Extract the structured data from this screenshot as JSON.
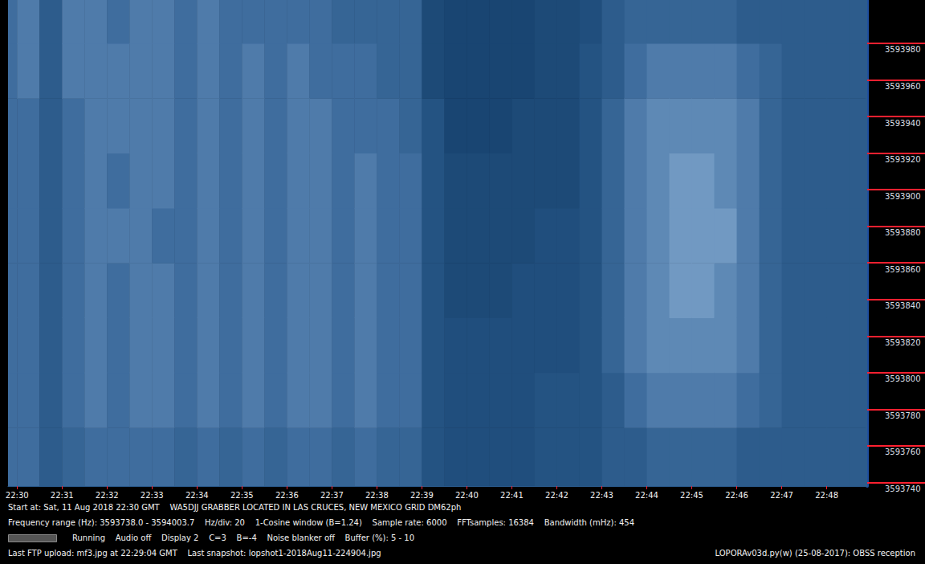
{
  "chart_data": {
    "type": "heatmap",
    "annotations": [
      "Start at: Sat, 11 Aug 2018 22:30 GMT    WA5DJJ GRABBER LOCATED IN LAS CRUCES, NEW MEXICO GRID DM62ph",
      "Frequency range (Hz): 3593738.0 - 3594003.7    Hz/div: 20    1-Cosine window (B=1.24)    Sample rate: 6000    FFTsamples: 16384    Bandwidth (mHz): 454",
      "Running    Audio off    Display 2    C=3    B=-4    Noise blanker off    Buffer (%): 5 - 10",
      "Last FTP upload: mf3.jpg at 22:29:04 GMT    Last snapshot: lopshot1-2018Aug11-224904.jpg",
      "LOPORAv03d.py(w) (25-08-2017): OBSS reception"
    ],
    "xlim": [
      1349.8,
      1368.9
    ],
    "xticks": [
      {
        "value": 1350,
        "label": "22:30"
      },
      {
        "value": 1351,
        "label": "22:31"
      },
      {
        "value": 1352,
        "label": "22:32"
      },
      {
        "value": 1353,
        "label": "22:33"
      },
      {
        "value": 1354,
        "label": "22:34"
      },
      {
        "value": 1355,
        "label": "22:35"
      },
      {
        "value": 1356,
        "label": "22:36"
      },
      {
        "value": 1357,
        "label": "22:37"
      },
      {
        "value": 1358,
        "label": "22:38"
      },
      {
        "value": 1359,
        "label": "22:39"
      },
      {
        "value": 1360,
        "label": "22:40"
      },
      {
        "value": 1361,
        "label": "22:41"
      },
      {
        "value": 1362,
        "label": "22:42"
      },
      {
        "value": 1363,
        "label": "22:43"
      },
      {
        "value": 1364,
        "label": "22:44"
      },
      {
        "value": 1365,
        "label": "22:45"
      },
      {
        "value": 1366,
        "label": "22:46"
      },
      {
        "value": 1367,
        "label": "22:47"
      },
      {
        "value": 1368,
        "label": "22:48"
      }
    ],
    "ylim": [
      3593738.0,
      3594003.7
    ],
    "yticks": [
      3593740,
      3593760,
      3593780,
      3593800,
      3593820,
      3593840,
      3593860,
      3593880,
      3593900,
      3593920,
      3593940,
      3593960,
      3593980
    ],
    "x_edges": [
      1349.8,
      1350.0,
      1350.5,
      1351.0,
      1351.5,
      1352.0,
      1352.5,
      1353.0,
      1353.5,
      1354.0,
      1354.5,
      1355.0,
      1355.5,
      1356.0,
      1356.5,
      1357.0,
      1357.5,
      1358.0,
      1358.5,
      1359.0,
      1359.5,
      1360.0,
      1360.5,
      1361.0,
      1361.5,
      1362.0,
      1362.5,
      1363.0,
      1363.5,
      1364.0,
      1364.5,
      1365.0,
      1365.5,
      1366.0,
      1366.5,
      1367.0,
      1367.5,
      1368.0,
      1368.5,
      1368.9
    ],
    "y_edges": [
      3593738.0,
      3593770,
      3593800,
      3593830,
      3593860,
      3593890,
      3593920,
      3593950,
      3593980,
      3594003.7
    ],
    "value_range": [
      0,
      10
    ],
    "cells": [
      [
        5,
        5,
        5,
        5,
        5,
        5,
        5,
        5,
        5
      ],
      [
        5,
        5,
        5,
        5,
        5,
        5,
        5,
        6,
        6
      ],
      [
        3,
        3,
        3,
        3,
        3,
        3,
        3,
        3,
        3
      ],
      [
        4,
        5,
        5,
        5,
        5,
        5,
        5,
        6,
        6
      ],
      [
        5,
        6,
        6,
        6,
        6,
        6,
        6,
        6,
        6
      ],
      [
        5,
        5,
        5,
        5,
        6,
        5,
        6,
        6,
        5
      ],
      [
        5,
        6,
        6,
        6,
        6,
        6,
        6,
        6,
        6
      ],
      [
        5,
        6,
        6,
        6,
        5,
        6,
        6,
        6,
        6
      ],
      [
        4,
        5,
        5,
        5,
        5,
        5,
        5,
        5,
        5
      ],
      [
        5,
        6,
        6,
        6,
        6,
        6,
        6,
        6,
        6
      ],
      [
        4,
        5,
        5,
        5,
        5,
        5,
        5,
        5,
        5
      ],
      [
        5,
        6,
        6,
        6,
        6,
        6,
        6,
        6,
        5
      ],
      [
        4,
        5,
        5,
        5,
        5,
        5,
        5,
        5,
        5
      ],
      [
        5,
        6,
        6,
        6,
        6,
        6,
        6,
        6,
        5
      ],
      [
        5,
        6,
        6,
        6,
        6,
        6,
        6,
        5,
        5
      ],
      [
        4,
        5,
        5,
        5,
        5,
        5,
        5,
        5,
        4
      ],
      [
        5,
        6,
        6,
        6,
        6,
        6,
        5,
        5,
        4
      ],
      [
        4,
        5,
        5,
        5,
        5,
        5,
        5,
        4,
        4
      ],
      [
        4,
        5,
        5,
        5,
        5,
        5,
        4,
        4,
        4
      ],
      [
        2,
        2,
        2,
        2,
        2,
        2,
        2,
        1,
        1
      ],
      [
        1.5,
        1.5,
        1.5,
        1,
        1,
        1,
        0.5,
        0.5,
        0.5
      ],
      [
        1.5,
        1.5,
        1.5,
        1,
        1,
        1,
        0.5,
        0.5,
        0.5
      ],
      [
        1.5,
        1.5,
        1.5,
        1,
        1,
        1,
        0.5,
        0.5,
        0.5
      ],
      [
        1.5,
        1.5,
        1.5,
        1.5,
        1,
        1,
        1,
        0.5,
        0.5
      ],
      [
        2,
        2,
        1.5,
        1.5,
        1.5,
        1,
        1,
        1,
        1
      ],
      [
        2,
        2,
        1.5,
        1.5,
        1.5,
        1,
        1,
        1,
        1
      ],
      [
        2,
        2,
        2,
        2,
        2,
        2,
        2,
        2,
        1.5
      ],
      [
        3,
        3,
        4,
        4,
        4,
        4,
        4,
        3,
        3
      ],
      [
        3,
        5,
        6,
        6,
        6,
        6,
        6,
        5,
        4
      ],
      [
        4,
        6,
        7,
        7,
        7,
        7,
        7,
        6,
        4
      ],
      [
        4,
        6,
        7,
        8,
        8,
        8,
        7,
        6,
        4
      ],
      [
        4,
        6,
        7,
        8,
        8,
        8,
        7,
        6,
        4
      ],
      [
        4,
        6,
        7,
        7,
        8,
        7,
        7,
        6,
        4
      ],
      [
        3,
        5,
        6,
        6,
        6,
        6,
        6,
        5,
        3
      ],
      [
        3,
        4,
        4,
        4,
        4,
        4,
        4,
        4,
        3
      ],
      [
        3,
        3,
        3,
        3,
        3,
        3,
        3,
        3,
        3
      ],
      [
        3,
        3,
        3,
        3,
        3,
        3,
        3,
        3,
        3
      ],
      [
        3,
        3,
        3,
        3,
        3,
        3,
        3,
        3,
        3
      ],
      [
        3,
        3,
        3,
        3,
        3,
        3,
        3,
        3,
        3
      ]
    ]
  }
}
